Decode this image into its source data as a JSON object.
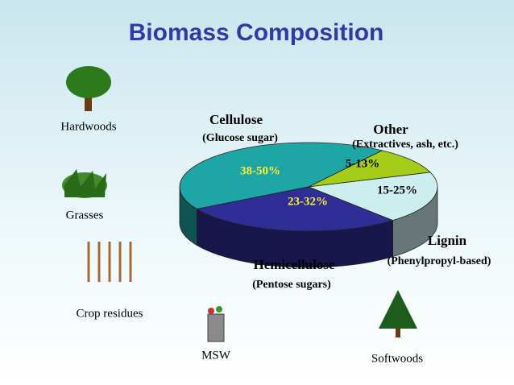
{
  "title": "Biomass Composition",
  "chart_data": {
    "type": "pie3d",
    "categories": [
      "Cellulose",
      "Other",
      "Lignin",
      "Hemicellulose"
    ],
    "descriptions": [
      "(Glucose sugar)",
      "(Extractives, ash, etc.)",
      "(Phenylpropyl-based)",
      "(Pentose sugars)"
    ],
    "values": [
      43,
      10,
      19,
      28
    ],
    "value_labels": [
      "38-50%",
      "5-13%",
      "15-25%",
      "23-32%"
    ],
    "colors": [
      "#1ea6a6",
      "#a6cc1a",
      "#cdeeee",
      "#2e2e96"
    ]
  },
  "feedstocks": [
    "Hardwoods",
    "Grasses",
    "Crop residues",
    "MSW",
    "Softwoods"
  ]
}
